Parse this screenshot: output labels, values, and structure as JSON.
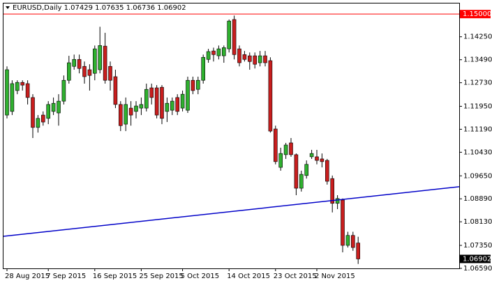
{
  "chart_data": {
    "type": "candlestick",
    "title": "EURUSD,Daily",
    "categories": [
      "28 Aug 2015",
      null,
      null,
      null,
      null,
      null,
      null,
      null,
      "7 Sep 2015",
      null,
      null,
      null,
      null,
      null,
      null,
      null,
      null,
      "16 Sep 2015",
      null,
      null,
      null,
      null,
      null,
      null,
      null,
      null,
      "25 Sep 2015",
      null,
      null,
      null,
      null,
      null,
      null,
      null,
      "5 Oct 2015",
      null,
      null,
      null,
      null,
      null,
      null,
      null,
      null,
      "14 Oct 2015",
      null,
      null,
      null,
      null,
      null,
      null,
      null,
      null,
      "23 Oct 2015",
      null,
      null,
      null,
      null,
      null,
      null,
      null,
      "2 Nov 2015",
      null,
      null,
      null,
      null,
      null,
      null,
      null,
      null
    ],
    "open": [
      1.1166,
      1.1178,
      1.1247,
      1.1274,
      1.127,
      1.1224,
      1.1125,
      1.1166,
      1.1155,
      1.1178,
      1.1173,
      1.1212,
      1.1281,
      1.1327,
      1.135,
      1.1327,
      1.1316,
      1.1304,
      1.1316,
      1.1394,
      1.1327,
      1.1293,
      1.1201,
      1.1136,
      1.1189,
      1.1178,
      1.1189,
      1.1189,
      1.1256,
      1.1256,
      1.1258,
      1.1178,
      1.1182,
      1.1224,
      1.1189,
      1.1182,
      1.1281,
      1.1251,
      1.1281,
      1.135,
      1.1378,
      1.1362,
      1.1362,
      1.1385,
      1.1482,
      1.1385,
      1.1366,
      1.1362,
      1.1362,
      1.1339,
      1.1362,
      1.1346,
      1.112,
      1.0993,
      1.1035,
      1.1074,
      1.1035,
      1.0924,
      1.0966,
      1.1028,
      1.1028,
      1.1021,
      1.1016,
      1.0956,
      1.0874,
      1.0885,
      1.0735,
      1.0768,
      1.07429
    ],
    "high": [
      1.1327,
      1.1281,
      1.1281,
      1.1281,
      1.1281,
      1.1235,
      1.1166,
      1.1178,
      1.1212,
      1.1224,
      1.1235,
      1.1297,
      1.1362,
      1.1366,
      1.1366,
      1.1343,
      1.1334,
      1.1396,
      1.1458,
      1.1438,
      1.1343,
      1.1316,
      1.1212,
      1.1224,
      1.1212,
      1.1212,
      1.1224,
      1.127,
      1.127,
      1.1265,
      1.1265,
      1.1224,
      1.1224,
      1.1235,
      1.1247,
      1.1293,
      1.1293,
      1.1293,
      1.1366,
      1.1385,
      1.1389,
      1.1396,
      1.1396,
      1.1482,
      1.1495,
      1.1396,
      1.1378,
      1.1373,
      1.1373,
      1.1378,
      1.1378,
      1.1357,
      1.1131,
      1.1058,
      1.1074,
      1.109,
      1.1039,
      1.0982,
      1.1016,
      1.1051,
      1.1051,
      1.1039,
      1.1021,
      1.0966,
      1.0901,
      1.089,
      1.078,
      1.078,
      1.07635
    ],
    "low": [
      1.1155,
      1.1166,
      1.1235,
      1.1247,
      1.1201,
      1.109,
      1.1108,
      1.1131,
      1.1136,
      1.1166,
      1.1131,
      1.1201,
      1.127,
      1.1316,
      1.1304,
      1.127,
      1.1247,
      1.1281,
      1.1304,
      1.127,
      1.1247,
      1.1189,
      1.1113,
      1.1113,
      1.1131,
      1.1155,
      1.1166,
      1.1178,
      1.1201,
      1.1155,
      1.1136,
      1.1143,
      1.1166,
      1.1166,
      1.1178,
      1.1173,
      1.1235,
      1.1235,
      1.127,
      1.1339,
      1.1343,
      1.135,
      1.1339,
      1.1373,
      1.135,
      1.1327,
      1.1343,
      1.1316,
      1.132,
      1.1327,
      1.1327,
      1.1108,
      1.1003,
      1.0982,
      1.1021,
      1.1028,
      1.0901,
      1.0913,
      1.0956,
      1.1021,
      1.1003,
      1.0993,
      1.0936,
      1.0844,
      1.0855,
      1.0712,
      1.0728,
      1.0717,
      1.06736
    ],
    "close": [
      1.1316,
      1.127,
      1.1274,
      1.1265,
      1.1224,
      1.1125,
      1.1155,
      1.1143,
      1.1201,
      1.1205,
      1.1212,
      1.1281,
      1.1339,
      1.135,
      1.132,
      1.1293,
      1.1297,
      1.1385,
      1.1396,
      1.1281,
      1.1281,
      1.1201,
      1.1131,
      1.1201,
      1.1166,
      1.1196,
      1.1201,
      1.1251,
      1.1224,
      1.1166,
      1.1155,
      1.1205,
      1.1212,
      1.1178,
      1.1235,
      1.1281,
      1.1247,
      1.1281,
      1.1357,
      1.1376,
      1.1366,
      1.1385,
      1.1389,
      1.1477,
      1.1366,
      1.1339,
      1.135,
      1.1343,
      1.1334,
      1.1362,
      1.1339,
      1.1113,
      1.1012,
      1.1039,
      1.1067,
      1.1035,
      1.0924,
      1.097,
      1.1003,
      1.1039,
      1.1016,
      1.1012,
      1.0947,
      1.0874,
      1.089,
      1.0735,
      1.0768,
      1.0728,
      1.06902
    ],
    "up_color": "#2fb02f",
    "down_color": "#c81e1e",
    "ylim": [
      1.0659,
      1.1535
    ],
    "yticks": [
      {
        "value": 1.1425,
        "label": "1.14250"
      },
      {
        "value": 1.1349,
        "label": "1.13490"
      },
      {
        "value": 1.1273,
        "label": "1.12730"
      },
      {
        "value": 1.1195,
        "label": "1.11950"
      },
      {
        "value": 1.1119,
        "label": "1.11190"
      },
      {
        "value": 1.1043,
        "label": "1.10430"
      },
      {
        "value": 1.0965,
        "label": "1.09650"
      },
      {
        "value": 1.0889,
        "label": "1.08890"
      },
      {
        "value": 1.0813,
        "label": "1.08130"
      },
      {
        "value": 1.0735,
        "label": "1.07350"
      },
      {
        "value": 1.0659,
        "label": "1.06590"
      }
    ],
    "hline": {
      "value": 1.15,
      "label": "1.15000",
      "color": "#ff0000"
    },
    "trendline": {
      "values": [
        1.0765,
        1.0929
      ],
      "color": "#0000c8"
    }
  }
}
